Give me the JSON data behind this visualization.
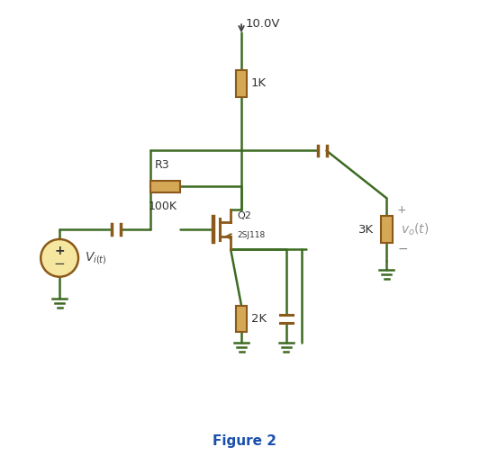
{
  "bg_color": "#ffffff",
  "wire_color": "#3d6b22",
  "component_fill": "#d4a855",
  "component_edge": "#8B5a1a",
  "title": "Figure 2",
  "title_color": "#1a4fad",
  "title_fontsize": 11,
  "vdd_label": "10.0V",
  "r1_label": "1K",
  "r3_label": "R3",
  "r3_val": "100K",
  "r2_label": "2K",
  "r_load_label": "3K",
  "q_label": "Q2",
  "q_sub": "2SJ118",
  "vo_label": "v_o(t)",
  "fig_width": 5.43,
  "fig_height": 5.17,
  "fig_dpi": 100
}
